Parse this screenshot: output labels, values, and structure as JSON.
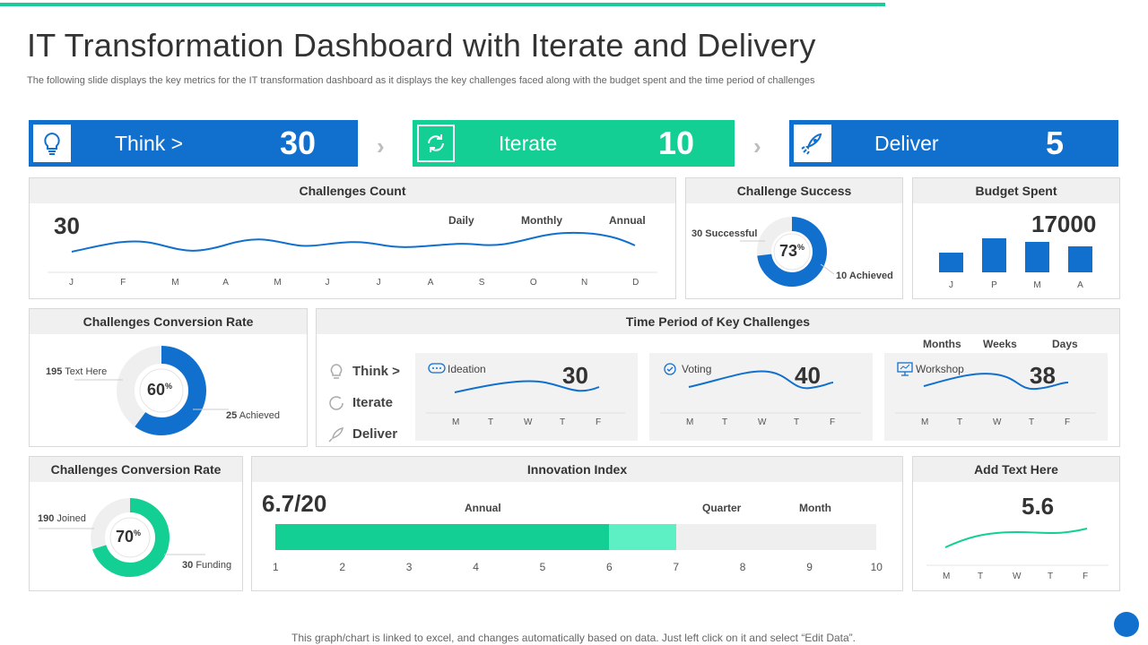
{
  "header": {
    "title": "IT Transformation  Dashboard with Iterate and Delivery",
    "subtitle": "The following slide displays the key metrics for the IT transformation dashboard as it displays the key challenges faced along with the budget spent and the time period of challenges"
  },
  "stages": [
    {
      "label": "Think >",
      "value": "30",
      "icon": "lightbulb-icon",
      "color": "#1170ce"
    },
    {
      "label": "Iterate",
      "value": "10",
      "icon": "refresh-icon",
      "color": "#13cf94"
    },
    {
      "label": "Deliver",
      "value": "5",
      "icon": "rocket-icon",
      "color": "#1170ce"
    }
  ],
  "challenges_count": {
    "title": "Challenges Count",
    "value": "30",
    "tabs": [
      "Daily",
      "Monthly",
      "Annual"
    ],
    "months": [
      "J",
      "F",
      "M",
      "A",
      "M",
      "J",
      "J",
      "A",
      "S",
      "O",
      "N",
      "D"
    ]
  },
  "challenge_success": {
    "title": "Challenge Success",
    "percent_label": "73",
    "percent_sign": "%",
    "percent": 73,
    "left_label": "30 Successful",
    "right_label": "10 Achieved"
  },
  "budget": {
    "title": "Budget Spent",
    "value": "17000",
    "chart_data": {
      "type": "bar",
      "categories": [
        "J",
        "P",
        "M",
        "A"
      ],
      "values": [
        22,
        38,
        34,
        29
      ],
      "ylim": [
        0,
        40
      ]
    }
  },
  "conversion1": {
    "title": "Challenges Conversion Rate",
    "percent_label": "60",
    "percent_sign": "%",
    "percent": 60,
    "left_value": "195",
    "left_text": "Text Here",
    "right_value": "25",
    "right_text": "Achieved"
  },
  "time_period": {
    "title": "Time Period of Key Challenges",
    "legend": [
      "Think >",
      "Iterate",
      "Deliver"
    ],
    "tabs": [
      "Months",
      "Weeks",
      "Days"
    ],
    "days": [
      "M",
      "T",
      "W",
      "T",
      "F"
    ],
    "cards": [
      {
        "label": "Ideation",
        "value": "30",
        "icon": "chat-bubble-icon"
      },
      {
        "label": "Voting",
        "value": "40",
        "icon": "check-circle-icon"
      },
      {
        "label": "Workshop",
        "value": "38",
        "icon": "presentation-board-icon"
      }
    ]
  },
  "conversion2": {
    "title": "Challenges Conversion Rate",
    "percent_label": "70",
    "percent_sign": "%",
    "percent": 70,
    "left_value": "190",
    "left_text": "Joined",
    "right_value": "30",
    "right_text": "Funding"
  },
  "innovation": {
    "title": "Innovation Index",
    "value": "6.7/20",
    "tabs": [
      "Annual",
      "Quarter",
      "Month"
    ],
    "scale": [
      "1",
      "2",
      "3",
      "4",
      "5",
      "6",
      "7",
      "8",
      "9",
      "10"
    ],
    "primary_fill": 6,
    "secondary_fill": 7,
    "max": 10
  },
  "addtext": {
    "title": "Add  Text Here",
    "value": "5.6",
    "days": [
      "M",
      "T",
      "W",
      "T",
      "F"
    ]
  },
  "footer": "This graph/chart is linked to excel,  and changes automatically based on data. Just left click on it and select “Edit Data”.",
  "colors": {
    "blue": "#1170ce",
    "green": "#13cf94",
    "light_green": "#5cf0c4",
    "track": "#efefef"
  }
}
